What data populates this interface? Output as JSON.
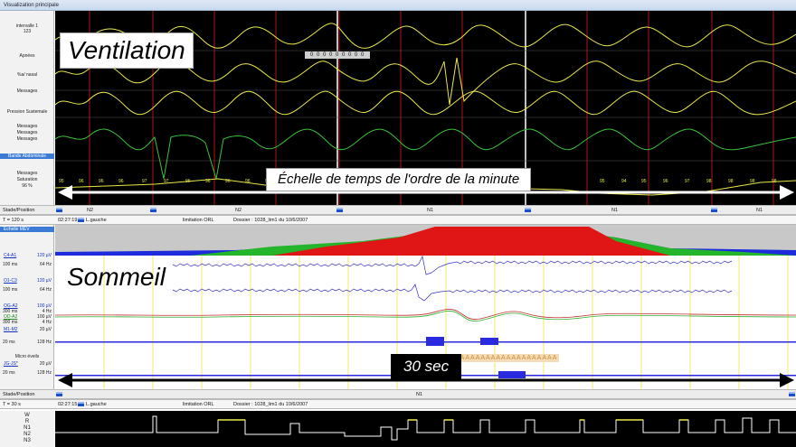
{
  "window": {
    "title": "Visualization principale"
  },
  "top_panel": {
    "overlay_title": "Ventilation",
    "time_scale_label": "Échelle de temps de l'ordre de la minute",
    "channel_labels": [
      "intervalle 1",
      "123",
      "Apnées",
      "%a/ nasal",
      "Messages",
      "Pression Sustemale",
      "Messages",
      "Messages",
      "Messages",
      "Bande Abdominale",
      "Messages",
      "Saturation",
      "96 %"
    ],
    "apnea_counter": "0 0 0 0 0 0 0 0 0",
    "saturation_values": [
      "95",
      "96",
      "96",
      "96",
      "97",
      "97",
      "96",
      "96",
      "96",
      "96",
      "95",
      "96",
      "96",
      "96",
      "97",
      "95",
      "94",
      "95",
      "96",
      "97",
      "98",
      "98",
      "98",
      "98"
    ]
  },
  "status_bar_top": {
    "stade_label": "Stade/Position",
    "stages": [
      "N2",
      "N2",
      "N1",
      "N1",
      "N1"
    ],
    "time_window": "T = 120 s",
    "clock": "02:27:19",
    "position": "L.gauche",
    "limitation": "limitation  ORL",
    "dossier": "Dossier : 1028_lim1 du 10/6/2007"
  },
  "bottom_panel": {
    "overlay_title": "Sommeil",
    "scale_label": "Echelle MEV",
    "thirty_sec_label": "30 sec",
    "channels": [
      {
        "name": "C4-A1",
        "gain": "120 µV",
        "filter1": "100 ms",
        "filter2": "64 Hz"
      },
      {
        "name": "O1-C3",
        "gain": "120 µV",
        "filter1": "100 ms",
        "filter2": "64 Hz"
      },
      {
        "name": "OG-A2",
        "gain": "100 µV",
        "filter1": "300 ms",
        "filter2": "4 Hz"
      },
      {
        "name": "OD-A2",
        "gain": "100 µV",
        "filter1": "300 ms",
        "filter2": "4 Hz"
      },
      {
        "name": "M1-M2",
        "gain": "20 µV",
        "filter1": "20 ms",
        "filter2": "128 Hz"
      },
      {
        "name": "Micro éveils",
        "gain": "",
        "filter1": "",
        "filter2": ""
      },
      {
        "name": "JG-JS*",
        "gain": "20 µV",
        "filter1": "20 ms",
        "filter2": "128 Hz"
      }
    ],
    "arousal_marks": "AAAAAAAAAAAAAAAAAAAA"
  },
  "status_bar_bottom": {
    "stade_label": "Stade/Position",
    "stage": "N1",
    "time_window": "T = 30 s",
    "clock": "02:27:15",
    "position": "L.gauche",
    "limitation": "limitation  ORL",
    "dossier": "Dossier : 1028_lim1 du 10/6/2007"
  },
  "hypnogram": {
    "stage_labels": [
      "W",
      "R",
      "N1",
      "N2",
      "N3"
    ]
  },
  "colors": {
    "top_background": "#000000",
    "yellow_trace": "#e8e84a",
    "green_trace": "#39c23a",
    "blue_trace": "#2a2adf",
    "red_grid": "#c01818",
    "accent_blue": "#1a4fd0"
  }
}
